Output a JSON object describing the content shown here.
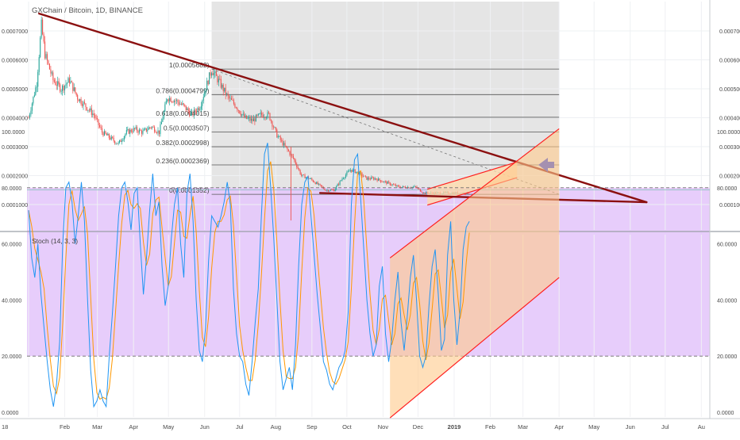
{
  "header": {
    "title": "GXChain / Bitcoin, 1D, BINANCE"
  },
  "stoch": {
    "title": "Stoch (14, 3, 3)"
  },
  "colors": {
    "trendline": "#8b1010",
    "fib_zone": "#e0e0e0",
    "channel_line": "#ff1f1f",
    "channel_fill": "#ffd9a8",
    "stoch_band": "#e4c8fb",
    "stoch_k": "#2196f3",
    "stoch_d": "#ff9800",
    "arrow": "#1f3be8",
    "up_candle": "#26a69a",
    "down_candle": "#ef5350"
  },
  "chart_data": [
    {
      "type": "line",
      "title": "GXChain / Bitcoin, 1D, BINANCE",
      "x_ticks": [
        "18",
        "Feb",
        "Mar",
        "Apr",
        "May",
        "Jun",
        "Jul",
        "Aug",
        "Sep",
        "Oct",
        "Nov",
        "Dec",
        "2019",
        "Feb",
        "Mar",
        "Apr",
        "May",
        "Jun",
        "Jul",
        "Au"
      ],
      "y_ticks": [
        "0.0001000",
        "0.0002000",
        "0.0003000",
        "0.0004000",
        "0.0005000",
        "0.0006000",
        "0.0007000"
      ],
      "ylim": [
        3e-05,
        0.000775
      ],
      "close_series": [
        [
          "2018-01-01",
          0.0004
        ],
        [
          "2018-01-08",
          0.00052
        ],
        [
          "2018-01-12",
          0.00072
        ],
        [
          "2018-01-15",
          0.00062
        ],
        [
          "2018-01-22",
          0.00053
        ],
        [
          "2018-01-29",
          0.0005
        ],
        [
          "2018-02-05",
          0.00053
        ],
        [
          "2018-02-12",
          0.00047
        ],
        [
          "2018-02-19",
          0.00044
        ],
        [
          "2018-02-26",
          0.00041
        ],
        [
          "2018-03-05",
          0.00035
        ],
        [
          "2018-03-12",
          0.00033
        ],
        [
          "2018-03-19",
          0.00031
        ],
        [
          "2018-03-26",
          0.00035
        ],
        [
          "2018-04-02",
          0.00036
        ],
        [
          "2018-04-09",
          0.00035
        ],
        [
          "2018-04-16",
          0.00037
        ],
        [
          "2018-04-23",
          0.00035
        ],
        [
          "2018-04-30",
          0.00047
        ],
        [
          "2018-05-07",
          0.00046
        ],
        [
          "2018-05-14",
          0.00044
        ],
        [
          "2018-05-21",
          0.00041
        ],
        [
          "2018-05-28",
          0.00044
        ],
        [
          "2018-06-04",
          0.00053
        ],
        [
          "2018-06-07",
          0.000566
        ],
        [
          "2018-06-14",
          0.00052
        ],
        [
          "2018-06-21",
          0.00047
        ],
        [
          "2018-06-28",
          0.00044
        ],
        [
          "2018-07-05",
          0.0004
        ],
        [
          "2018-07-12",
          0.00039
        ],
        [
          "2018-07-19",
          0.00041
        ],
        [
          "2018-07-26",
          0.00041
        ],
        [
          "2018-08-02",
          0.00034
        ],
        [
          "2018-08-09",
          0.0003
        ],
        [
          "2018-08-16",
          0.00026
        ],
        [
          "2018-08-23",
          0.0002
        ],
        [
          "2018-08-30",
          0.00019
        ],
        [
          "2018-09-06",
          0.00017
        ],
        [
          "2018-09-13",
          0.00015
        ],
        [
          "2018-09-20",
          0.00015
        ],
        [
          "2018-09-27",
          0.00019
        ],
        [
          "2018-10-04",
          0.00022
        ],
        [
          "2018-10-11",
          0.00021
        ],
        [
          "2018-10-18",
          0.00019
        ],
        [
          "2018-10-25",
          0.00019
        ],
        [
          "2018-11-01",
          0.00018
        ],
        [
          "2018-11-08",
          0.00017
        ],
        [
          "2018-11-15",
          0.00016
        ],
        [
          "2018-11-22",
          0.00016
        ],
        [
          "2018-11-29",
          0.00016
        ],
        [
          "2018-12-06",
          0.00014
        ],
        [
          "2018-12-13",
          0.00014
        ],
        [
          "2018-12-20",
          0.00014
        ],
        [
          "2018-12-27",
          0.00014
        ],
        [
          "2019-01-03",
          0.00014
        ],
        [
          "2019-01-10",
          0.00014
        ],
        [
          "2019-01-14",
          0.00014
        ]
      ],
      "fib_levels": [
        {
          "ratio": "1",
          "value": "0.0005682"
        },
        {
          "ratio": "0.786",
          "value": "0.0004799"
        },
        {
          "ratio": "0.618",
          "value": "0.0004015"
        },
        {
          "ratio": "0.5",
          "value": "0.0003507"
        },
        {
          "ratio": "0.382",
          "value": "0.0002998"
        },
        {
          "ratio": "0.236",
          "value": "0.0002369"
        },
        {
          "ratio": "0",
          "value": "0.0001352"
        }
      ],
      "trend_lines": [
        {
          "name": "upper_resistance",
          "from": [
            "2018-01-10",
            0.00076
          ],
          "to": [
            "2019-06-15",
            0.000108
          ]
        },
        {
          "name": "lower_support",
          "from": [
            "2018-09-08",
            0.00014
          ],
          "to": [
            "2019-06-15",
            0.000108
          ]
        }
      ],
      "price_channel": {
        "upper": [
          [
            "2018-12-09",
            0.000153
          ],
          [
            "2019-02-24",
            0.000247
          ]
        ],
        "lower": [
          [
            "2018-12-09",
            9.8e-05
          ],
          [
            "2019-02-24",
            0.000193
          ]
        ]
      },
      "current_price": 0.000151
    },
    {
      "type": "line",
      "title": "Stoch (14, 3, 3)",
      "y_ticks": [
        "0.0000",
        "20.0000",
        "40.0000",
        "60.0000",
        "80.0000",
        "100.0000"
      ],
      "ylim": [
        0,
        100
      ],
      "bands": {
        "upper": 80,
        "lower": 20
      },
      "k_values": [
        72,
        55,
        48,
        60,
        42,
        30,
        18,
        8,
        2,
        10,
        25,
        60,
        80,
        82,
        75,
        60,
        70,
        82,
        68,
        40,
        15,
        2,
        4,
        8,
        4,
        2,
        20,
        35,
        52,
        70,
        80,
        82,
        75,
        65,
        78,
        80,
        60,
        42,
        55,
        72,
        85,
        70,
        75,
        52,
        38,
        45,
        62,
        74,
        80,
        60,
        48,
        78,
        85,
        68,
        40,
        22,
        18,
        30,
        54,
        70,
        68,
        66,
        70,
        75,
        82,
        74,
        44,
        28,
        20,
        18,
        10,
        6,
        18,
        32,
        44,
        70,
        92,
        96,
        80,
        62,
        40,
        18,
        8,
        12,
        16,
        8,
        24,
        52,
        74,
        82,
        84,
        70,
        56,
        42,
        30,
        18,
        15,
        10,
        8,
        12,
        16,
        18,
        22,
        36,
        74,
        90,
        92,
        76,
        58,
        40,
        28,
        20,
        24,
        45,
        52,
        28,
        18,
        26,
        40,
        50,
        32,
        22,
        34,
        48,
        56,
        40,
        20,
        16,
        20,
        38,
        52,
        58,
        42,
        22,
        26,
        56,
        68,
        40,
        24,
        36,
        58,
        66,
        68
      ]
    }
  ],
  "annotations": {
    "fib_zone": {
      "from": "2018-06-07",
      "to": "2019-04-01"
    },
    "stoch_channel": {
      "upper": [
        [
          "2018-11-07",
          55
        ],
        [
          "2019-04-01",
          101
        ]
      ],
      "lower": [
        [
          "2018-11-07",
          -2
        ],
        [
          "2019-04-01",
          48
        ]
      ]
    },
    "arrow_icon": "arrow-left-icon"
  }
}
